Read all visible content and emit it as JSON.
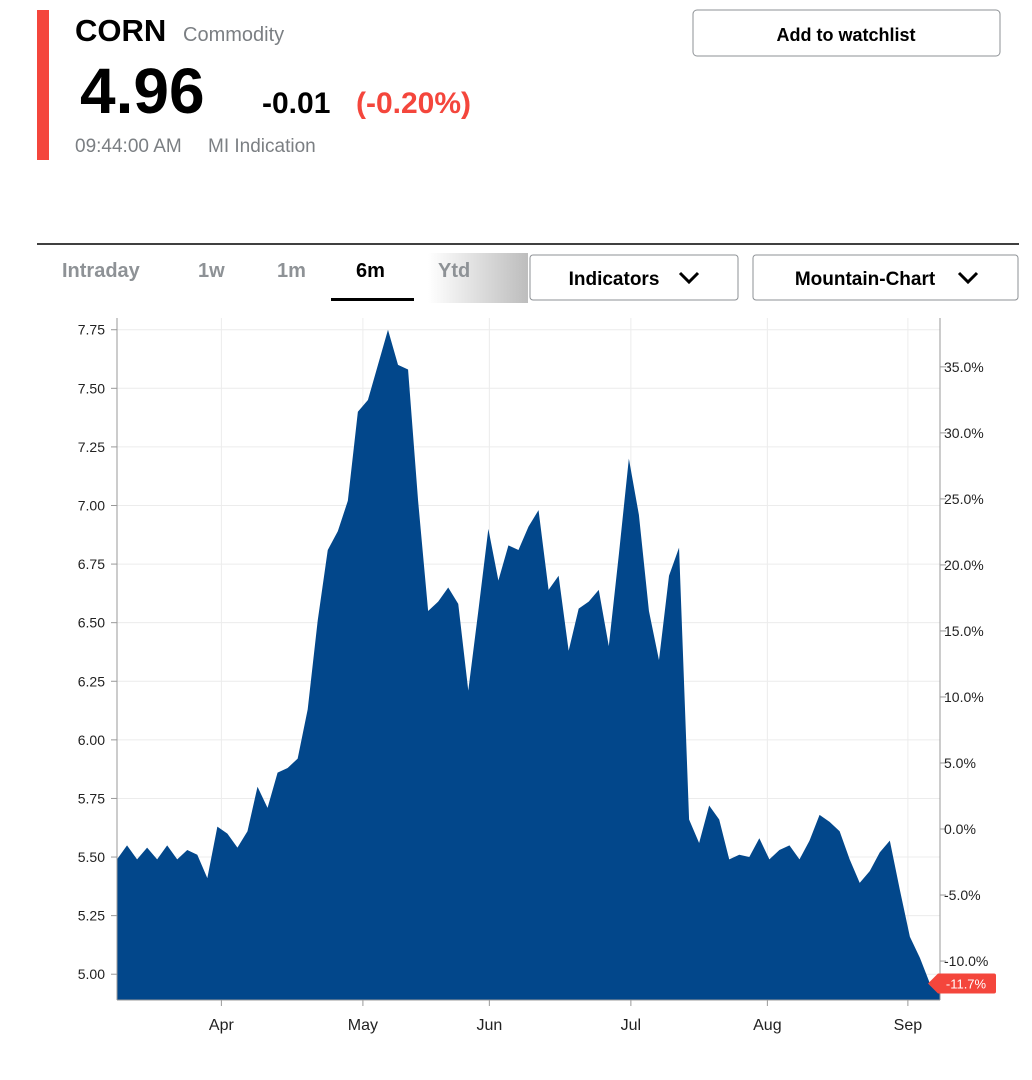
{
  "header": {
    "symbol": "CORN",
    "kind": "Commodity",
    "price": "4.96",
    "change": "-0.01",
    "change_pct": "(-0.20%)",
    "time": "09:44:00 AM",
    "source": "MI Indication",
    "button": "Add to watchlist"
  },
  "tabs": {
    "items": [
      "Intraday",
      "1w",
      "1m",
      "6m",
      "Ytd"
    ],
    "active": 3
  },
  "dropdowns": [
    "Indicators",
    "Mountain-Chart"
  ],
  "chart_data": {
    "type": "area",
    "color": "#02478b",
    "values": [
      5.49,
      5.55,
      5.49,
      5.54,
      5.49,
      5.55,
      5.49,
      5.53,
      5.51,
      5.41,
      5.63,
      5.6,
      5.54,
      5.61,
      5.8,
      5.71,
      5.86,
      5.88,
      5.92,
      6.13,
      6.51,
      6.81,
      6.89,
      7.02,
      7.4,
      7.45,
      7.6,
      7.75,
      7.6,
      7.58,
      7.02,
      6.55,
      6.59,
      6.65,
      6.58,
      6.21,
      6.55,
      6.9,
      6.68,
      6.83,
      6.81,
      6.91,
      6.98,
      6.64,
      6.7,
      6.38,
      6.56,
      6.59,
      6.64,
      6.4,
      6.79,
      7.2,
      6.96,
      6.55,
      6.34,
      6.7,
      6.82,
      5.66,
      5.56,
      5.72,
      5.66,
      5.49,
      5.51,
      5.5,
      5.58,
      5.49,
      5.53,
      5.55,
      5.49,
      5.57,
      5.68,
      5.65,
      5.61,
      5.49,
      5.39,
      5.44,
      5.52,
      5.57,
      5.36,
      5.16,
      5.07,
      4.96,
      4.96
    ],
    "xlim": [
      0,
      82
    ],
    "xticks": [
      {
        "value": 10.4,
        "label": "Apr"
      },
      {
        "value": 24.5,
        "label": "May"
      },
      {
        "value": 37.1,
        "label": "Jun"
      },
      {
        "value": 51.2,
        "label": "Jul"
      },
      {
        "value": 64.8,
        "label": "Aug"
      },
      {
        "value": 78.8,
        "label": "Sep"
      }
    ],
    "ylim": [
      4.89,
      7.8
    ],
    "yticks": [
      7.75,
      {
        "value": 7.5,
        "label": "7.50"
      },
      7.25,
      {
        "value": 7,
        "label": "7.00"
      },
      6.75,
      {
        "value": 6.5,
        "label": "6.50"
      },
      6.25,
      {
        "value": 6,
        "label": "6.00"
      },
      5.75,
      {
        "value": 5.5,
        "label": "5.50"
      },
      5.25,
      {
        "value": 5,
        "label": "5.00"
      }
    ],
    "y2lim": [
      -12.95,
      38.7
    ],
    "y2ticks": [
      {
        "value": 35,
        "label": "35.0%"
      },
      {
        "value": 30,
        "label": "30.0%"
      },
      {
        "value": 25,
        "label": "25.0%"
      },
      {
        "value": 20,
        "label": "20.0%"
      },
      {
        "value": 15,
        "label": "15.0%"
      },
      {
        "value": 10,
        "label": "10.0%"
      },
      {
        "value": 5,
        "label": "5.0%"
      },
      {
        "value": 0,
        "label": "0.0%"
      },
      {
        "value": -5,
        "label": "-5.0%"
      },
      {
        "value": -10,
        "label": "-10.0%"
      }
    ],
    "end_label": {
      "value": -11.7,
      "label": "-11.7%"
    },
    "grid": true
  }
}
